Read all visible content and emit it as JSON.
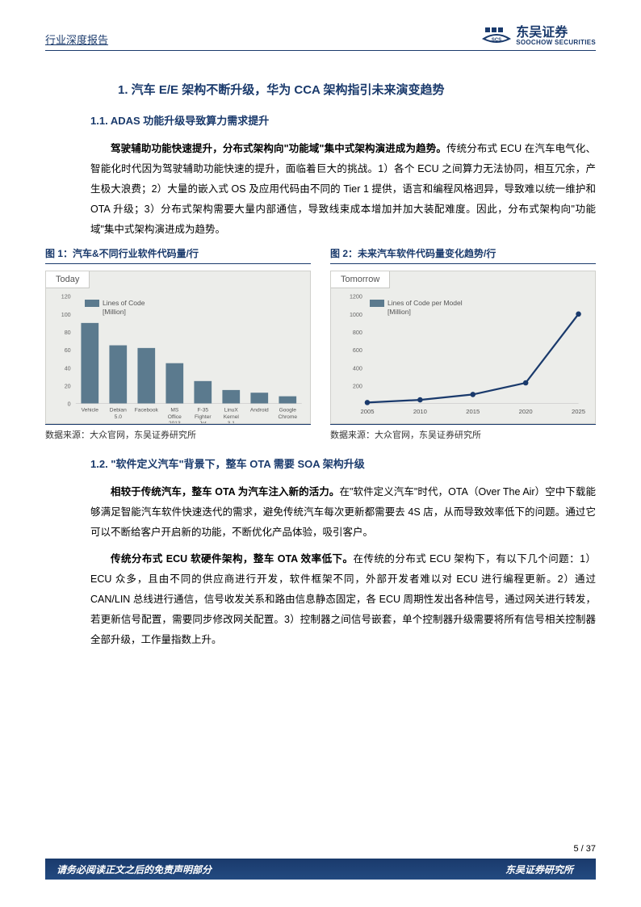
{
  "header": {
    "doc_type": "行业深度报告",
    "logo_cn": "东吴证券",
    "logo_en": "SOOCHOW SECURITIES",
    "logo_tag": "SCS"
  },
  "h1": "1.  汽车 E/E 架构不断升级，华为 CCA 架构指引未来演变趋势",
  "h2a": "1.1.  ADAS 功能升级导致算力需求提升",
  "p1_bold": "驾驶辅助功能快速提升，分布式架构向\"功能域\"集中式架构演进成为趋势。",
  "p1_rest": "传统分布式 ECU 在汽车电气化、智能化时代因为驾驶辅助功能快速的提升，面临着巨大的挑战。1）各个 ECU 之间算力无法协同，相互冗余，产生极大浪费；2）大量的嵌入式 OS 及应用代码由不同的 Tier 1 提供，语言和编程风格迥异，导致难以统一维护和 OTA 升级；3）分布式架构需要大量内部通信，导致线束成本增加并加大装配难度。因此，分布式架构向\"功能域\"集中式架构演进成为趋势。",
  "chart1": {
    "caption": "图 1：汽车&不同行业软件代码量/行",
    "badge": "Today",
    "legend_line1": "Lines of Code",
    "legend_line2": "[Million]",
    "categories": [
      "Vehicle",
      "Debian\n5.0",
      "Facebook",
      "MS\nOffice\n2013",
      "F-35\nFighter\nJet",
      "LinuX\nKernel\n3.1",
      "Android",
      "Google\nChrome"
    ],
    "values": [
      90,
      65,
      62,
      45,
      25,
      15,
      12,
      8
    ],
    "bar_color": "#5b7a8e",
    "yticks": [
      0,
      20,
      40,
      60,
      80,
      100,
      120
    ],
    "ylim_max": 120,
    "bg": "#ecedea",
    "border": "#d0d0cc",
    "source": "数据来源：大众官网，东吴证券研究所"
  },
  "chart2": {
    "caption": "图 2：未来汽车软件代码量变化趋势/行",
    "badge": "Tomorrow",
    "legend_line1": "Lines of Code per Model",
    "legend_line2": "[Million]",
    "x": [
      2005,
      2010,
      2015,
      2020,
      2025
    ],
    "y": [
      10,
      40,
      100,
      230,
      1000
    ],
    "xticks": [
      2005,
      2010,
      2015,
      2020,
      2025
    ],
    "yticks": [
      200,
      400,
      600,
      800,
      1000,
      1200
    ],
    "ylim_max": 1200,
    "line_color": "#1a3a6c",
    "marker_color": "#1a3a6c",
    "bg": "#ecedea",
    "source": "数据来源：大众官网，东吴证券研究所"
  },
  "h2b": "1.2.  \"软件定义汽车\"背景下，整车 OTA 需要 SOA 架构升级",
  "p2_bold": "相较于传统汽车，整车 OTA 为汽车注入新的活力。",
  "p2_rest": "在\"软件定义汽车\"时代，OTA（Over The Air）空中下载能够满足智能汽车软件快速迭代的需求，避免传统汽车每次更新都需要去 4S 店，从而导致效率低下的问题。通过它可以不断给客户开启新的功能，不断优化产品体验，吸引客户。",
  "p3_bold": "传统分布式 ECU 软硬件架构，整车 OTA 效率低下。",
  "p3_rest": "在传统的分布式 ECU 架构下，有以下几个问题：1）ECU 众多，且由不同的供应商进行开发，软件框架不同，外部开发者难以对 ECU 进行编程更新。2）通过 CAN/LIN 总线进行通信，信号收发关系和路由信息静态固定，各 ECU 周期性发出各种信号，通过网关进行转发，若更新信号配置，需要同步修改网关配置。3）控制器之间信号嵌套，单个控制器升级需要将所有信号相关控制器全部升级，工作量指数上升。",
  "footer": {
    "pagenum": "5 / 37",
    "disclaimer": "请务必阅读正文之后的免责声明部分",
    "org": "东吴证券研究所"
  },
  "colors": {
    "brand": "#1a3a6c"
  }
}
